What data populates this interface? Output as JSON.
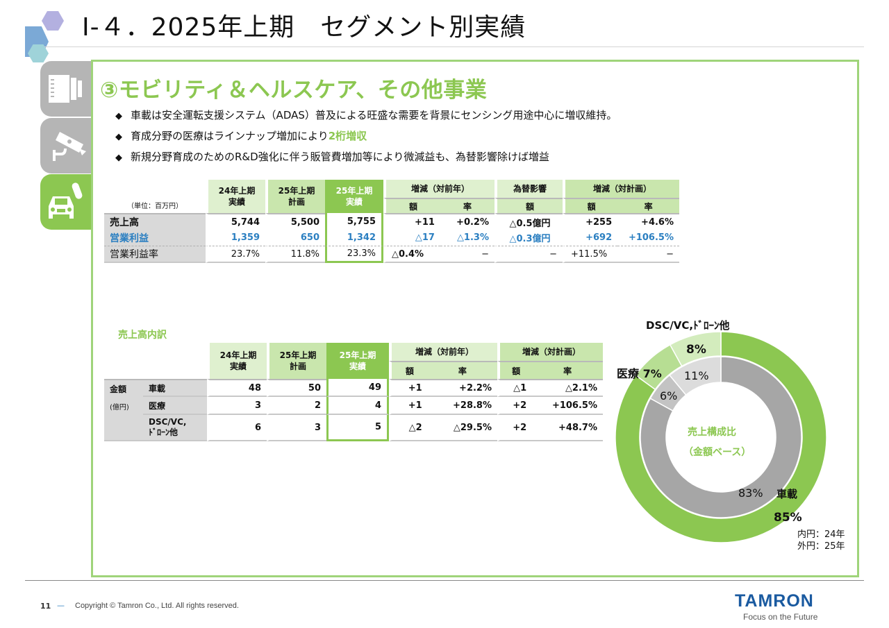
{
  "page": {
    "title": "Ⅰ-４．2025年上期　セグメント別実績",
    "page_number": "11",
    "copyright": "Copyright © Tamron Co., Ltd. All rights reserved.",
    "logo": "TAMRON",
    "tagline": "Focus on the Future"
  },
  "tabs": [
    {
      "name": "lens",
      "icon": "lens-icon",
      "active": false
    },
    {
      "name": "surveillance",
      "icon": "security-camera-icon",
      "active": false
    },
    {
      "name": "mobility",
      "icon": "car-icon",
      "active": true
    }
  ],
  "section": {
    "heading": "③モビリティ＆ヘルスケア、その他事業",
    "bullets": [
      {
        "text": "車載は安全運転支援システム（ADAS）普及による旺盛な需要を背景にセンシング用途中心に増収維持。",
        "highlight": ""
      },
      {
        "text": "育成分野の医療はラインナップ増加により",
        "highlight": "2桁増収"
      },
      {
        "text": "新規分野育成のためのR&D強化に伴う販管費増加等により微減益も、為替影響除けば増益",
        "highlight": ""
      }
    ]
  },
  "table1": {
    "unit": "（単位：百万円）",
    "headers": [
      "24年上期\n実績",
      "25年上期\n計画",
      "25年上期\n実績"
    ],
    "group_yoy": "増減（対前年）",
    "group_fx": "為替影響",
    "group_plan": "増減（対計画）",
    "sub_amount": "額",
    "sub_rate": "率",
    "rows": [
      {
        "label": "売上高",
        "v24": "5,744",
        "plan25": "5,500",
        "act25": "5,755",
        "yoy_amt": "+11",
        "yoy_rate": "+0.2%",
        "fx": "△0.5億円",
        "plan_amt": "+255",
        "plan_rate": "+4.6%"
      },
      {
        "label": "営業利益",
        "v24": "1,359",
        "plan25": "650",
        "act25": "1,342",
        "yoy_amt": "△17",
        "yoy_rate": "△1.3%",
        "fx": "△0.3億円",
        "plan_amt": "+692",
        "plan_rate": "+106.5%"
      },
      {
        "label": "営業利益率",
        "v24": "23.7%",
        "plan25": "11.8%",
        "act25": "23.3%",
        "yoy_amt": "△0.4%",
        "yoy_rate": "−",
        "fx": "−",
        "plan_amt": "+11.5%",
        "plan_rate": "−"
      }
    ]
  },
  "table2": {
    "title": "売上高内訳",
    "row_group": "金額",
    "row_group_unit": "(億円)",
    "headers": [
      "24年上期\n実績",
      "25年上期\n計画",
      "25年上期\n実績"
    ],
    "group_yoy": "増減（対前年）",
    "group_plan": "増減（対計画）",
    "sub_amount": "額",
    "sub_rate": "率",
    "rows": [
      {
        "label": "車載",
        "v24": "48",
        "plan25": "50",
        "act25": "49",
        "yoy_amt": "+1",
        "yoy_rate": "+2.2%",
        "plan_amt": "△1",
        "plan_rate": "△2.1%"
      },
      {
        "label": "医療",
        "v24": "3",
        "plan25": "2",
        "act25": "4",
        "yoy_amt": "+1",
        "yoy_rate": "+28.8%",
        "plan_amt": "+2",
        "plan_rate": "+106.5%"
      },
      {
        "label": "DSC/VC,\nﾄﾞﾛｰﾝ他",
        "v24": "6",
        "plan25": "3",
        "act25": "5",
        "yoy_amt": "△2",
        "yoy_rate": "△29.5%",
        "plan_amt": "+2",
        "plan_rate": "+48.7%"
      }
    ]
  },
  "chart_data": {
    "type": "pie",
    "subtype": "double-donut",
    "title": "売上構成比（金額ベース）",
    "center_label_1": "売上構成比",
    "center_label_2": "（金額ベース）",
    "categories": [
      "車載",
      "医療",
      "DSC/VC,ﾄﾞﾛｰﾝ他"
    ],
    "series": [
      {
        "name": "24年 (内円)",
        "values": [
          83,
          6,
          11
        ],
        "colors": [
          "#a6a6a6",
          "#c3c3c3",
          "#dcdcdc"
        ]
      },
      {
        "name": "25年 (外円)",
        "values": [
          85,
          7,
          8
        ],
        "colors": [
          "#8cc751",
          "#b7de93",
          "#d3ecbd"
        ]
      }
    ],
    "labels": {
      "dsc": "DSC/VC,ﾄﾞﾛｰﾝ他",
      "dsc_outer": "8%",
      "dsc_inner": "11%",
      "medical": "医療",
      "medical_outer": "7%",
      "medical_inner": "6%",
      "car": "車載",
      "car_inner": "83%",
      "car_outer": "85%"
    },
    "legend": [
      "内円：24年",
      "外円：25年"
    ]
  },
  "colors": {
    "accent_green": "#8cc751",
    "light_green": "#dff0cf",
    "gray": "#d9d9d9",
    "brand_blue": "#1a5aa0"
  }
}
